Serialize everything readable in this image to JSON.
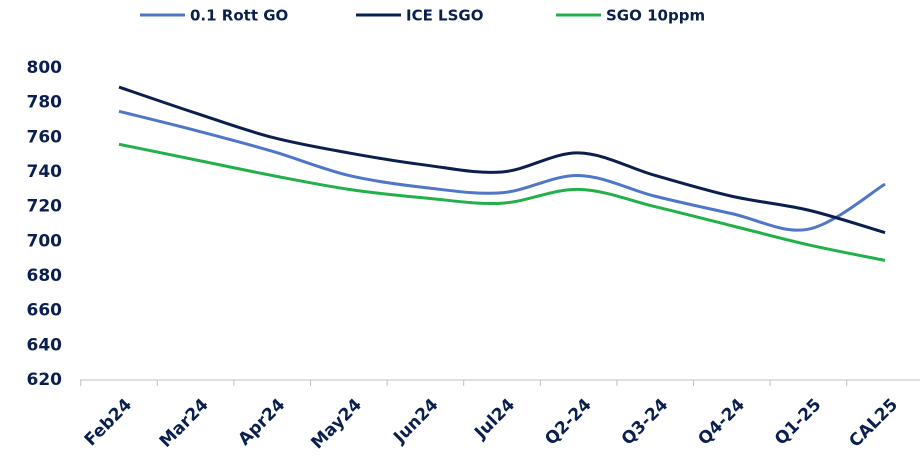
{
  "chart_data": {
    "type": "line",
    "categories": [
      "Feb24",
      "Mar24",
      "Apr24",
      "May24",
      "Jun24",
      "Jul24",
      "Q2-24",
      "Q3-24",
      "Q4-24",
      "Q1-25",
      "CAL25"
    ],
    "series": [
      {
        "name": "0.1 Rott GO",
        "color": "#4f76c8",
        "values": [
          775,
          764,
          752,
          738,
          731,
          728,
          738,
          726,
          716,
          707,
          733
        ]
      },
      {
        "name": "ICE LSGO",
        "color": "#0b1f4f",
        "values": [
          789,
          774,
          760,
          751,
          744,
          740,
          751,
          738,
          726,
          718,
          705
        ]
      },
      {
        "name": "SGO 10ppm",
        "color": "#22b04b",
        "values": [
          756,
          747,
          738,
          730,
          725,
          722,
          730,
          720,
          709,
          698,
          689
        ]
      }
    ],
    "ylim": [
      620,
      800
    ],
    "yticks": [
      620,
      640,
      660,
      680,
      700,
      720,
      740,
      760,
      780,
      800
    ]
  }
}
